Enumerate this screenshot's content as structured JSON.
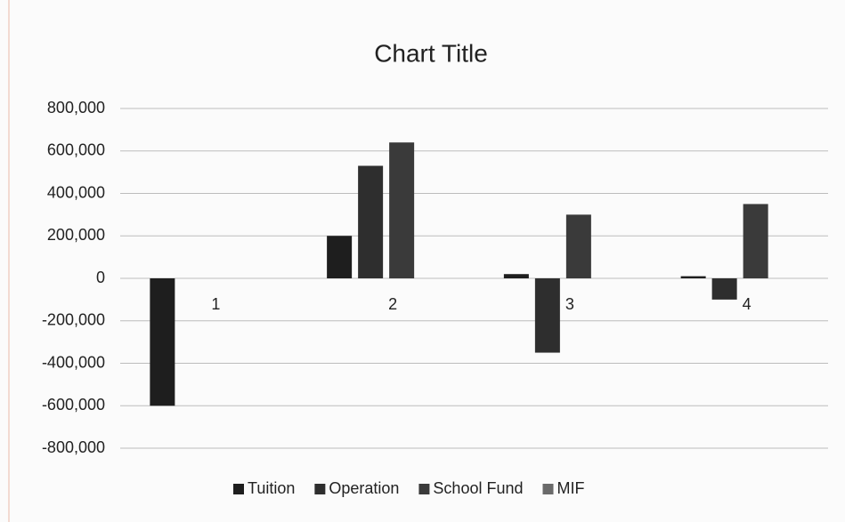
{
  "chart_data": {
    "type": "bar",
    "title": "Chart Title",
    "categories": [
      "1",
      "2",
      "3",
      "4"
    ],
    "series": [
      {
        "name": "Tuition",
        "color": "#1e1e1e",
        "values": [
          -600000,
          200000,
          20000,
          10000
        ]
      },
      {
        "name": "Operation",
        "color": "#2e2e2e",
        "values": [
          0,
          530000,
          -350000,
          -100000
        ]
      },
      {
        "name": "School Fund",
        "color": "#3a3a3a",
        "values": [
          0,
          640000,
          300000,
          350000
        ]
      },
      {
        "name": "MIF",
        "color": "#6a6a6a",
        "values": [
          0,
          0,
          0,
          0
        ]
      }
    ],
    "ylim": [
      -800000,
      800000
    ],
    "yticks": [
      {
        "value": -800000,
        "label": "-800,000"
      },
      {
        "value": -600000,
        "label": "-600,000"
      },
      {
        "value": -400000,
        "label": "-400,000"
      },
      {
        "value": -200000,
        "label": "-200,000"
      },
      0,
      {
        "value": 200000,
        "label": "200,000"
      },
      {
        "value": 400000,
        "label": "400,000"
      },
      {
        "value": 600000,
        "label": "600,000"
      },
      {
        "value": 800000,
        "label": "800,000"
      }
    ],
    "grid": true,
    "legend": "bottom"
  }
}
